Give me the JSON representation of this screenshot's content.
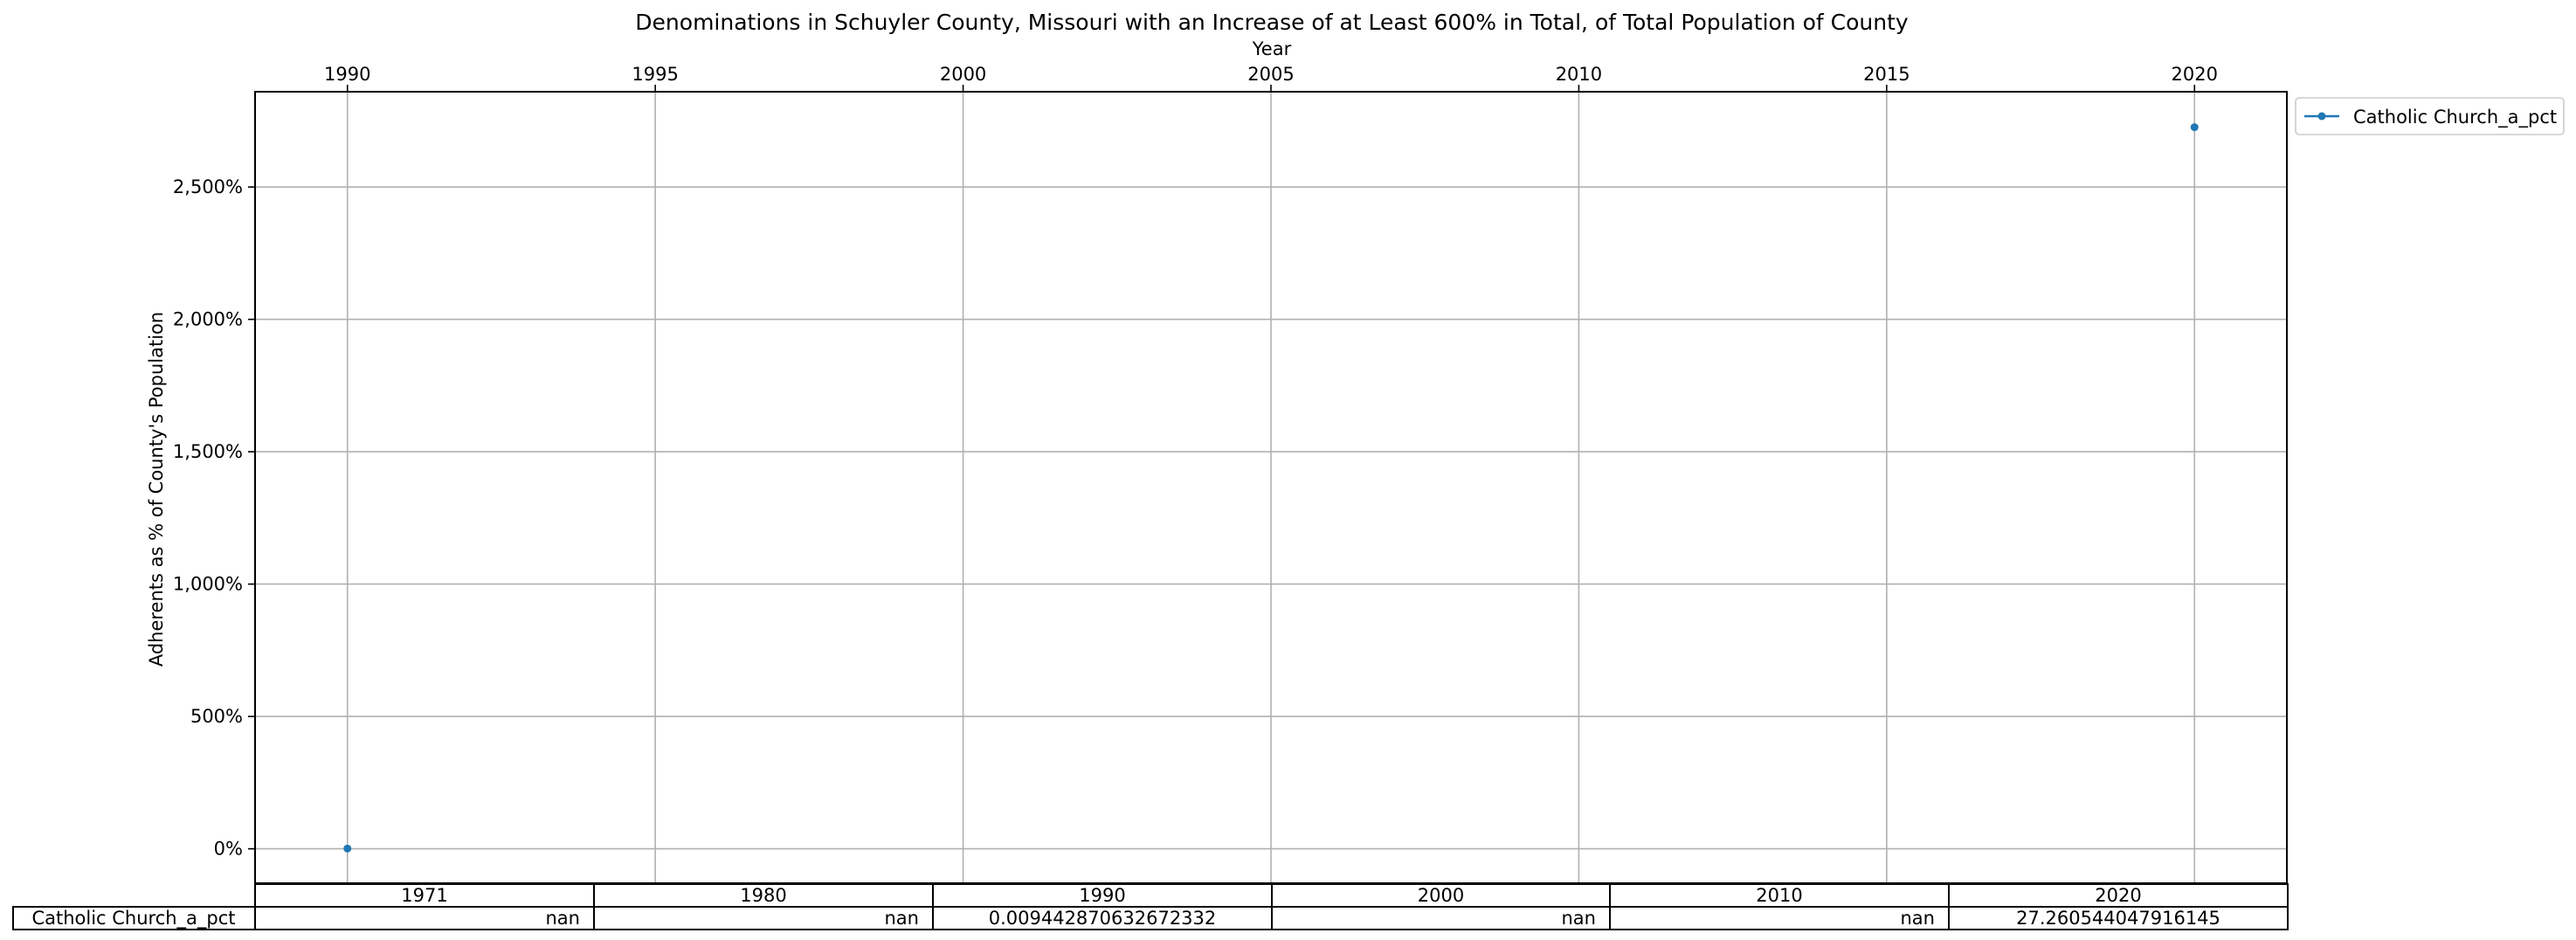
{
  "chart_data": {
    "type": "line",
    "title": "Denominations in Schuyler County, Missouri with an Increase of at Least 600% in Total, of Total Population of County",
    "xlabel": "Year",
    "ylabel": "Adherents as % of County's Population",
    "x_axis_position": "top",
    "xlim": [
      1988.5,
      2021.5
    ],
    "xticks": [
      "1990",
      "1995",
      "2000",
      "2005",
      "2010",
      "2015",
      "2020"
    ],
    "ylim": [
      -130,
      2860
    ],
    "yticks": [
      0,
      500,
      1000,
      1500,
      2000,
      2500
    ],
    "ytick_labels": [
      "0%",
      "500%",
      "1,000%",
      "1,500%",
      "2,000%",
      "2,500%"
    ],
    "grid": true,
    "legend_position": "outside-top-right",
    "series": [
      {
        "name": "Catholic Church_a_pct",
        "color": "#1f77b4",
        "x": [
          1990,
          2020
        ],
        "y": [
          0.9442870632672332,
          2726.0544047916146
        ]
      }
    ],
    "table": {
      "columns": [
        "1971",
        "1980",
        "1990",
        "2000",
        "2010",
        "2020"
      ],
      "rows": [
        {
          "label": "Catholic Church_a_pct",
          "cells": [
            "nan",
            "nan",
            "0.009442870632672332",
            "nan",
            "nan",
            "27.260544047916145"
          ]
        }
      ]
    }
  }
}
